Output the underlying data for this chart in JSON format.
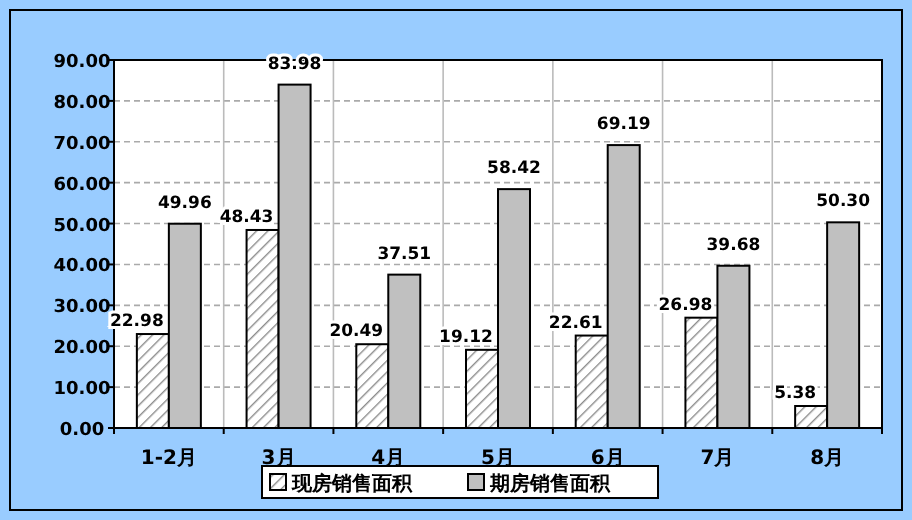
{
  "chart_data": {
    "type": "bar",
    "categories": [
      "1-2月",
      "3月",
      "4月",
      "5月",
      "6月",
      "7月",
      "8月"
    ],
    "series": [
      {
        "name": "现房销售面积",
        "color": "#000000",
        "values": [
          22.98,
          48.43,
          20.49,
          19.12,
          22.61,
          26.98,
          5.38
        ],
        "value_labels": [
          "22.98",
          "48.43",
          "20.49",
          "19.12",
          "22.61",
          "26.98",
          "5.38"
        ]
      },
      {
        "name": "期房销售面积",
        "color": "#c0c0c0",
        "values": [
          49.96,
          83.98,
          37.51,
          58.42,
          69.19,
          39.68,
          50.3
        ],
        "value_labels": [
          "49.96",
          "83.98",
          "37.51",
          "58.42",
          "69.19",
          "39.68",
          "50.30"
        ]
      }
    ],
    "ylim": [
      0,
      90
    ],
    "yticks": [
      {
        "value": 0,
        "label": "0.00"
      },
      {
        "value": 10,
        "label": "10.00"
      },
      {
        "value": 20,
        "label": "20.00"
      },
      {
        "value": 30,
        "label": "30.00"
      },
      {
        "value": 40,
        "label": "40.00"
      },
      {
        "value": 50,
        "label": "50.00"
      },
      {
        "value": 60,
        "label": "60.00"
      },
      {
        "value": 70,
        "label": "70.00"
      },
      {
        "value": 80,
        "label": "80.00"
      },
      {
        "value": 90,
        "label": "90.00"
      }
    ],
    "grid": true,
    "legend": "bottom"
  }
}
